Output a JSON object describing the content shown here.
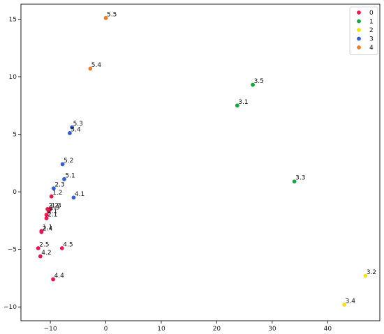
{
  "chart_data": {
    "type": "scatter",
    "title": "",
    "xlabel": "",
    "ylabel": "",
    "xlim": [
      -15.3,
      49.4
    ],
    "ylim": [
      -11.2,
      16.3
    ],
    "xticks": [
      -10,
      0,
      10,
      20,
      30,
      40
    ],
    "yticks": [
      -10,
      -5,
      0,
      5,
      10,
      15
    ],
    "grid": false,
    "legend": {
      "position": "top-right"
    },
    "series": [
      {
        "name": "0",
        "color": "#f0134f",
        "points": [
          {
            "x": -9.8,
            "y": -0.4,
            "label": "1.2"
          },
          {
            "x": -10.5,
            "y": -1.5,
            "label": "2.2"
          },
          {
            "x": -10.0,
            "y": -1.5,
            "label": "1.3"
          },
          {
            "x": -10.3,
            "y": -1.7,
            "label": "1.3"
          },
          {
            "x": -10.7,
            "y": -2.0,
            "label": "2.1"
          },
          {
            "x": -10.7,
            "y": -2.3,
            "label": "2.1"
          },
          {
            "x": -11.6,
            "y": -3.4,
            "label": "1.1"
          },
          {
            "x": -11.6,
            "y": -3.5,
            "label": "2.4"
          },
          {
            "x": -12.2,
            "y": -4.9,
            "label": "2.5"
          },
          {
            "x": -11.8,
            "y": -5.6,
            "label": "4.2"
          },
          {
            "x": -7.9,
            "y": -4.9,
            "label": "4.5"
          },
          {
            "x": -9.5,
            "y": -7.6,
            "label": "4.4"
          }
        ]
      },
      {
        "name": "1",
        "color": "#12a83c",
        "points": [
          {
            "x": 26.5,
            "y": 9.3,
            "label": "3.5"
          },
          {
            "x": 23.7,
            "y": 7.5,
            "label": "3.1"
          },
          {
            "x": 34.0,
            "y": 0.9,
            "label": "3.3"
          }
        ]
      },
      {
        "name": "2",
        "color": "#f5e20b",
        "points": [
          {
            "x": 46.8,
            "y": -7.3,
            "label": "3.2"
          },
          {
            "x": 43.0,
            "y": -9.8,
            "label": "3.4"
          }
        ]
      },
      {
        "name": "3",
        "color": "#2f5fd6",
        "points": [
          {
            "x": -6.1,
            "y": 5.6,
            "label": "5.3"
          },
          {
            "x": -6.5,
            "y": 5.1,
            "label": "5.4"
          },
          {
            "x": -7.8,
            "y": 2.4,
            "label": "5.2"
          },
          {
            "x": -7.5,
            "y": 1.1,
            "label": "5.1"
          },
          {
            "x": -9.4,
            "y": 0.3,
            "label": "2.3"
          },
          {
            "x": -5.8,
            "y": -0.5,
            "label": "4.1"
          }
        ]
      },
      {
        "name": "4",
        "color": "#f47b20",
        "points": [
          {
            "x": 0.0,
            "y": 15.1,
            "label": "5.5"
          },
          {
            "x": -2.8,
            "y": 10.7,
            "label": "5.4"
          }
        ]
      }
    ]
  }
}
